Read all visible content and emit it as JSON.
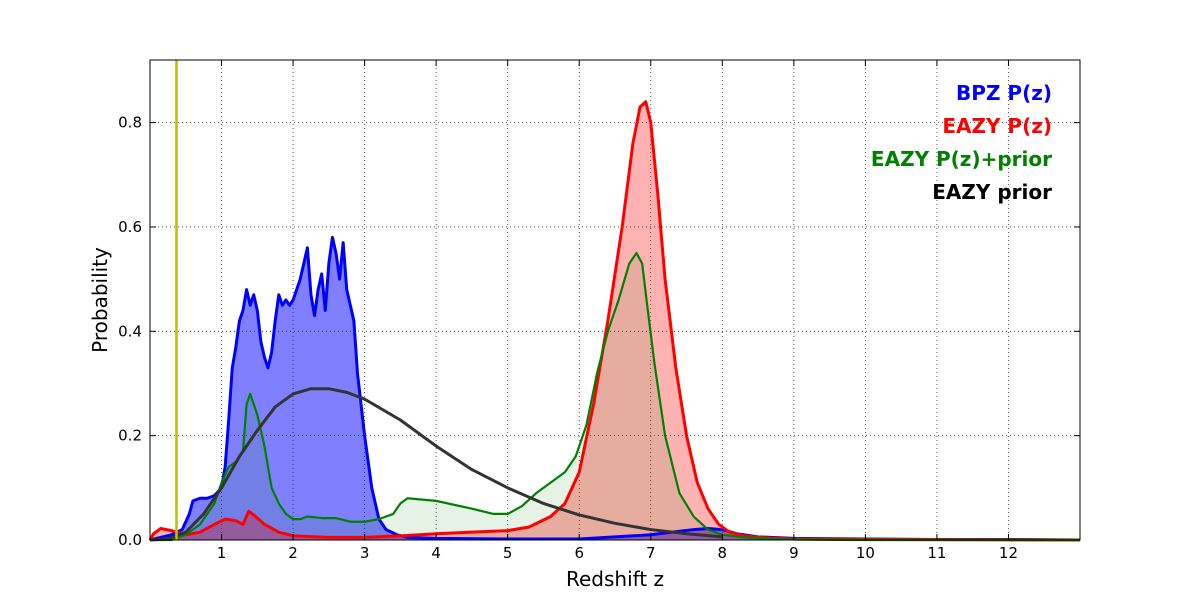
{
  "chart_data": {
    "type": "area",
    "xlabel": "Redshift z",
    "ylabel": "Probability",
    "xlim": [
      0,
      13
    ],
    "ylim": [
      0,
      0.92
    ],
    "x_ticks": [
      1,
      2,
      3,
      4,
      5,
      6,
      7,
      8,
      9,
      10,
      11,
      12
    ],
    "y_ticks": [
      0.0,
      0.2,
      0.4,
      0.6,
      0.8
    ],
    "grid": true,
    "legend_placement": "top-right",
    "vertical_marker": {
      "x": 0.37,
      "color": "#bfbf00"
    },
    "series": [
      {
        "name": "BPZ P(z)",
        "color": "#0000ff",
        "fill": "#0000ff",
        "fill_opacity": 0.5,
        "x": [
          0.0,
          0.3,
          0.45,
          0.55,
          0.6,
          0.7,
          0.8,
          0.9,
          1.0,
          1.05,
          1.1,
          1.15,
          1.2,
          1.25,
          1.3,
          1.35,
          1.4,
          1.45,
          1.5,
          1.55,
          1.6,
          1.65,
          1.7,
          1.75,
          1.8,
          1.85,
          1.9,
          1.95,
          2.0,
          2.05,
          2.1,
          2.15,
          2.2,
          2.25,
          2.3,
          2.35,
          2.4,
          2.45,
          2.5,
          2.55,
          2.6,
          2.65,
          2.7,
          2.75,
          2.8,
          2.85,
          2.9,
          3.0,
          3.1,
          3.2,
          3.3,
          3.45,
          3.6,
          4.0,
          5.0,
          6.0,
          7.0,
          7.3,
          7.6,
          7.8,
          8.0,
          8.2,
          8.5,
          9.0,
          10.0,
          11.0,
          12.0,
          13.0
        ],
        "y": [
          0.0,
          0.01,
          0.02,
          0.05,
          0.075,
          0.08,
          0.08,
          0.085,
          0.1,
          0.14,
          0.23,
          0.33,
          0.37,
          0.42,
          0.44,
          0.48,
          0.45,
          0.47,
          0.44,
          0.38,
          0.35,
          0.33,
          0.36,
          0.42,
          0.47,
          0.45,
          0.46,
          0.45,
          0.46,
          0.48,
          0.5,
          0.53,
          0.56,
          0.47,
          0.43,
          0.48,
          0.51,
          0.44,
          0.53,
          0.58,
          0.55,
          0.5,
          0.57,
          0.48,
          0.45,
          0.42,
          0.32,
          0.2,
          0.1,
          0.04,
          0.02,
          0.01,
          0.005,
          0.003,
          0.002,
          0.002,
          0.01,
          0.015,
          0.02,
          0.022,
          0.02,
          0.012,
          0.006,
          0.003,
          0.002,
          0.001,
          0.001,
          0.0
        ]
      },
      {
        "name": "EAZY P(z)",
        "color": "#ff0000",
        "fill": "#ff0000",
        "fill_opacity": 0.3,
        "x": [
          0.0,
          0.05,
          0.15,
          0.3,
          0.5,
          0.7,
          0.9,
          1.05,
          1.2,
          1.3,
          1.38,
          1.45,
          1.6,
          1.8,
          2.0,
          2.5,
          3.0,
          3.5,
          4.0,
          4.5,
          5.0,
          5.3,
          5.6,
          5.8,
          6.0,
          6.2,
          6.4,
          6.6,
          6.75,
          6.85,
          6.93,
          7.0,
          7.1,
          7.2,
          7.35,
          7.5,
          7.65,
          7.8,
          7.95,
          8.1,
          8.3,
          8.6,
          9.0,
          10.0,
          13.0
        ],
        "y": [
          0.0,
          0.012,
          0.022,
          0.018,
          0.01,
          0.015,
          0.03,
          0.04,
          0.037,
          0.03,
          0.055,
          0.048,
          0.03,
          0.015,
          0.008,
          0.005,
          0.005,
          0.008,
          0.012,
          0.015,
          0.018,
          0.025,
          0.045,
          0.07,
          0.13,
          0.26,
          0.42,
          0.6,
          0.76,
          0.83,
          0.84,
          0.8,
          0.66,
          0.5,
          0.33,
          0.2,
          0.11,
          0.06,
          0.03,
          0.015,
          0.008,
          0.004,
          0.002,
          0.001,
          0.0
        ]
      },
      {
        "name": "EAZY P(z)+prior",
        "color": "#008000",
        "fill": "#008000",
        "fill_opacity": 0.1,
        "x": [
          0.0,
          0.3,
          0.5,
          0.7,
          0.9,
          1.0,
          1.1,
          1.2,
          1.3,
          1.35,
          1.4,
          1.5,
          1.6,
          1.7,
          1.8,
          1.9,
          2.0,
          2.1,
          2.2,
          2.4,
          2.6,
          2.8,
          3.0,
          3.2,
          3.4,
          3.5,
          3.6,
          4.0,
          4.5,
          4.8,
          5.0,
          5.2,
          5.4,
          5.6,
          5.8,
          5.95,
          6.1,
          6.25,
          6.4,
          6.55,
          6.7,
          6.8,
          6.88,
          6.95,
          7.05,
          7.2,
          7.4,
          7.6,
          7.8,
          8.0,
          8.3,
          8.7,
          9.0,
          10.0,
          13.0
        ],
        "y": [
          0.0,
          0.0,
          0.01,
          0.03,
          0.07,
          0.11,
          0.14,
          0.15,
          0.17,
          0.26,
          0.28,
          0.24,
          0.18,
          0.1,
          0.07,
          0.05,
          0.04,
          0.04,
          0.045,
          0.042,
          0.042,
          0.035,
          0.035,
          0.04,
          0.05,
          0.07,
          0.08,
          0.075,
          0.06,
          0.05,
          0.05,
          0.065,
          0.09,
          0.11,
          0.13,
          0.16,
          0.22,
          0.32,
          0.4,
          0.46,
          0.53,
          0.55,
          0.53,
          0.45,
          0.34,
          0.2,
          0.09,
          0.045,
          0.02,
          0.01,
          0.005,
          0.002,
          0.001,
          0.0,
          0.0
        ]
      },
      {
        "name": "EAZY prior",
        "color": "#333333",
        "fill": "none",
        "fill_opacity": 0,
        "x": [
          0.0,
          0.25,
          0.5,
          0.75,
          1.0,
          1.25,
          1.5,
          1.75,
          2.0,
          2.25,
          2.5,
          2.75,
          3.0,
          3.5,
          4.0,
          4.5,
          5.0,
          5.5,
          6.0,
          6.5,
          7.0,
          7.5,
          8.0
        ],
        "y": [
          0.0,
          0.002,
          0.015,
          0.05,
          0.1,
          0.16,
          0.21,
          0.255,
          0.28,
          0.29,
          0.29,
          0.283,
          0.27,
          0.23,
          0.18,
          0.135,
          0.1,
          0.07,
          0.048,
          0.032,
          0.02,
          0.012,
          0.006
        ]
      }
    ]
  }
}
